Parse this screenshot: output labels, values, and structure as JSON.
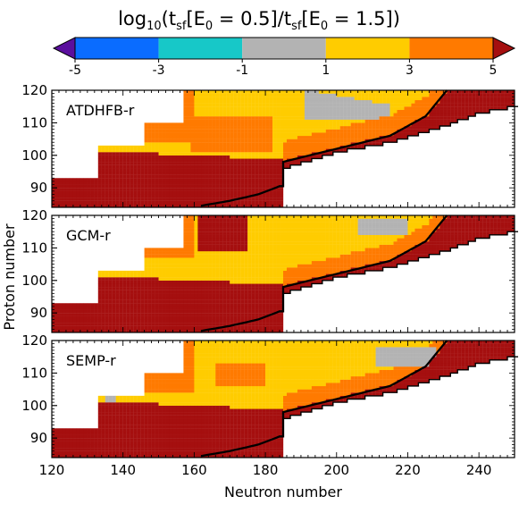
{
  "chart_data": {
    "type": "heatmap",
    "title": "log10(tsf[E0 = 0.5]/tsf[E0 = 1.5])",
    "title_parts": {
      "pre": "log",
      "pre_sub": "10",
      "open": "(t",
      "s1": "sf",
      "mid1": "[E",
      "z1": "0",
      "eq1": " = 0.5]/t",
      "s2": "sf",
      "mid2": "[E",
      "z2": "0",
      "eq2": " = 1.5])"
    },
    "colorbar": {
      "orientation": "horizontal",
      "placement": "top",
      "extend": "both",
      "ticks": [
        "-5",
        "-3",
        "-1",
        "1",
        "3",
        "5"
      ],
      "bins": [
        {
          "from": -5,
          "to": -3,
          "color": "#0a6cff"
        },
        {
          "from": -3,
          "to": -1,
          "color": "#17c8c8"
        },
        {
          "from": -1,
          "to": 1,
          "color": "#b3b3b3"
        },
        {
          "from": 1,
          "to": 3,
          "color": "#ffcc00"
        },
        {
          "from": 3,
          "to": 5,
          "color": "#ff7a00"
        }
      ],
      "under_color": "#5b0f9e",
      "over_color": "#a50f0f"
    },
    "xlabel": "Neutron number",
    "ylabel": "Proton number",
    "xlim": [
      120,
      250
    ],
    "ylim": [
      84,
      120
    ],
    "xticks": [
      "120",
      "140",
      "160",
      "180",
      "200",
      "220",
      "240"
    ],
    "yticks": [
      "90",
      "100",
      "110",
      "120"
    ],
    "panels": [
      {
        "label": "ATDHFB-r"
      },
      {
        "label": "GCM-r"
      },
      {
        "label": "SEMP-r"
      }
    ]
  },
  "colors": {
    "dark_red": "#a50f0f",
    "orange": "#ff7a00",
    "yellow": "#ffcc00",
    "gray": "#b3b3b3",
    "boundary_line": "#000000"
  }
}
